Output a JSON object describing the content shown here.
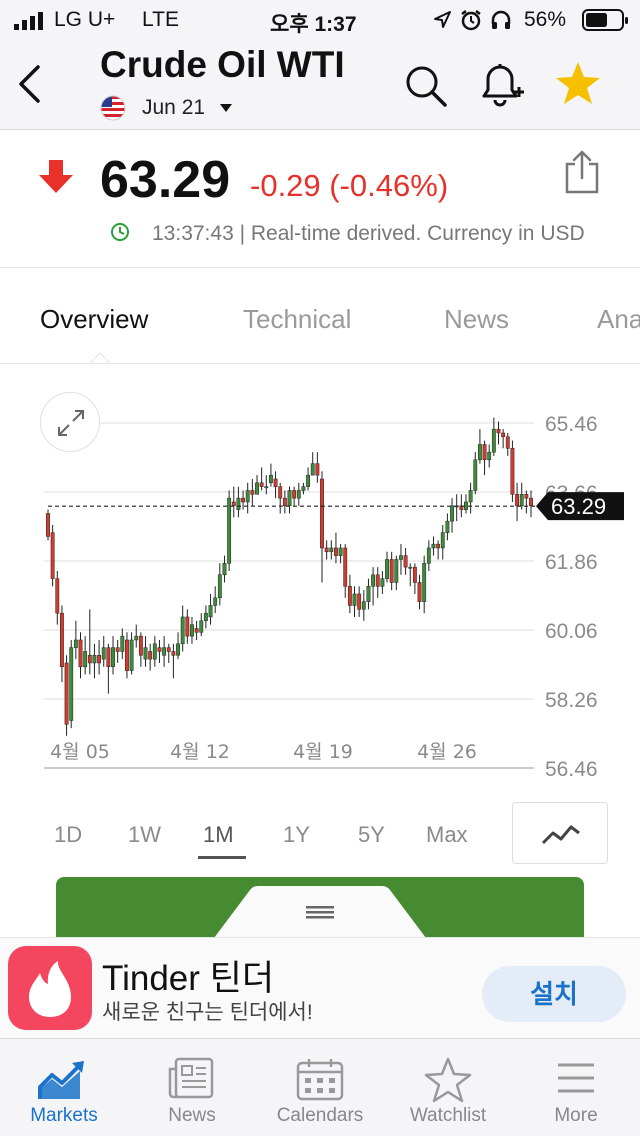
{
  "status_bar": {
    "carrier": "LG U+",
    "network": "LTE",
    "time": "오후 1:37",
    "battery": "56%"
  },
  "header": {
    "title": "Crude Oil WTI",
    "contract": "Jun 21",
    "flag_icon": "us-flag-icon",
    "icons": [
      "back-chevron-icon",
      "search-icon",
      "bell-plus-icon",
      "star-icon"
    ],
    "star_color": "#f5c000"
  },
  "quote": {
    "price": "63.29",
    "change": "-0.29 (-0.46%)",
    "time": "13:37:43",
    "note": "| Real-time derived. Currency in USD",
    "down_color": "#e8312b",
    "clock_color": "#2f9e3a"
  },
  "tabs": [
    {
      "label": "Overview",
      "active": true
    },
    {
      "label": "Technical",
      "active": false
    },
    {
      "label": "News",
      "active": false
    },
    {
      "label": "Ana",
      "active": false
    }
  ],
  "chart_data": {
    "type": "candlestick",
    "y_ticks": [
      "65.46",
      "63.66",
      "61.86",
      "60.06",
      "58.26",
      "56.46"
    ],
    "ylim": [
      56.46,
      65.46
    ],
    "x_ticks": [
      "4월 05",
      "4월 12",
      "4월 19",
      "4월 26"
    ],
    "last_price": "63.29",
    "last_value": 63.29,
    "up_color": "#3e8c3a",
    "down_color": "#d23b2e",
    "candles": [
      [
        63.1,
        62.5,
        63.2,
        62.4
      ],
      [
        62.6,
        61.4,
        62.8,
        61.2
      ],
      [
        61.4,
        60.5,
        61.6,
        60.2
      ],
      [
        60.5,
        59.1,
        60.7,
        58.7
      ],
      [
        59.2,
        57.6,
        59.4,
        57.3
      ],
      [
        57.7,
        59.6,
        59.8,
        57.5
      ],
      [
        59.6,
        59.8,
        60.3,
        59.3
      ],
      [
        59.8,
        59.1,
        60.0,
        58.8
      ],
      [
        59.1,
        59.5,
        59.9,
        58.9
      ],
      [
        59.4,
        59.2,
        60.6,
        58.9
      ],
      [
        59.2,
        59.4,
        59.7,
        58.8
      ],
      [
        59.4,
        59.2,
        59.8,
        58.9
      ],
      [
        59.3,
        59.6,
        59.9,
        59.1
      ],
      [
        59.6,
        59.1,
        59.7,
        58.4
      ],
      [
        59.1,
        59.6,
        59.9,
        58.9
      ],
      [
        59.6,
        59.5,
        59.8,
        59.2
      ],
      [
        59.5,
        59.9,
        60.1,
        59.3
      ],
      [
        59.8,
        59.0,
        60.0,
        58.8
      ],
      [
        59.0,
        59.8,
        60.0,
        58.9
      ],
      [
        59.8,
        59.9,
        60.2,
        59.6
      ],
      [
        59.9,
        59.4,
        60.0,
        59.1
      ],
      [
        59.3,
        59.6,
        59.9,
        59.1
      ],
      [
        59.5,
        59.3,
        59.7,
        59.0
      ],
      [
        59.3,
        59.7,
        59.9,
        59.1
      ],
      [
        59.6,
        59.5,
        59.8,
        59.2
      ],
      [
        59.4,
        59.6,
        59.9,
        59.1
      ],
      [
        59.6,
        59.5,
        59.7,
        59.2
      ],
      [
        59.5,
        59.4,
        59.7,
        58.8
      ],
      [
        59.4,
        59.7,
        60.0,
        59.3
      ],
      [
        59.7,
        60.4,
        60.7,
        59.5
      ],
      [
        60.4,
        59.9,
        60.6,
        59.7
      ],
      [
        59.9,
        60.2,
        60.4,
        59.7
      ],
      [
        60.1,
        60.0,
        60.3,
        59.8
      ],
      [
        60.0,
        60.3,
        60.5,
        59.9
      ],
      [
        60.3,
        60.5,
        60.7,
        60.1
      ],
      [
        60.4,
        60.7,
        61.0,
        60.2
      ],
      [
        60.7,
        60.9,
        61.2,
        60.5
      ],
      [
        60.9,
        61.5,
        61.8,
        60.7
      ],
      [
        61.5,
        61.8,
        62.0,
        61.3
      ],
      [
        61.8,
        63.5,
        63.7,
        61.6
      ],
      [
        63.4,
        63.3,
        63.8,
        63.0
      ],
      [
        63.2,
        63.5,
        63.8,
        63.0
      ],
      [
        63.5,
        63.4,
        63.7,
        63.2
      ],
      [
        63.4,
        63.7,
        63.9,
        63.1
      ],
      [
        63.7,
        63.6,
        64.0,
        63.3
      ],
      [
        63.6,
        63.9,
        64.1,
        63.6
      ],
      [
        63.9,
        63.8,
        64.3,
        63.7
      ],
      [
        63.8,
        63.8,
        64.1,
        63.6
      ],
      [
        63.9,
        64.1,
        64.4,
        63.8
      ],
      [
        64.0,
        63.8,
        64.2,
        63.5
      ],
      [
        63.8,
        63.5,
        63.9,
        63.1
      ],
      [
        63.5,
        63.3,
        63.7,
        63.1
      ],
      [
        63.3,
        63.7,
        63.8,
        63.1
      ],
      [
        63.7,
        63.5,
        63.8,
        63.3
      ],
      [
        63.5,
        63.7,
        63.9,
        63.3
      ],
      [
        63.7,
        63.8,
        63.9,
        63.6
      ],
      [
        63.8,
        64.1,
        64.3,
        63.7
      ],
      [
        64.1,
        64.4,
        64.7,
        64.1
      ],
      [
        64.4,
        64.1,
        64.7,
        63.9
      ],
      [
        64.0,
        62.2,
        64.2,
        61.3
      ],
      [
        62.2,
        62.1,
        62.4,
        61.9
      ],
      [
        62.1,
        62.2,
        62.4,
        61.9
      ],
      [
        62.2,
        62.0,
        62.6,
        61.8
      ],
      [
        62.0,
        62.2,
        62.3,
        61.8
      ],
      [
        62.2,
        61.2,
        62.3,
        60.9
      ],
      [
        61.2,
        60.7,
        61.5,
        60.5
      ],
      [
        60.7,
        61.0,
        61.2,
        60.4
      ],
      [
        61.0,
        60.6,
        61.2,
        60.4
      ],
      [
        60.6,
        60.8,
        61.1,
        60.3
      ],
      [
        60.8,
        61.2,
        61.4,
        60.6
      ],
      [
        61.2,
        61.5,
        61.7,
        60.7
      ],
      [
        61.5,
        61.2,
        61.7,
        60.9
      ],
      [
        61.2,
        61.4,
        61.6,
        61.0
      ],
      [
        61.4,
        61.9,
        62.1,
        61.3
      ],
      [
        61.9,
        61.3,
        62.1,
        61.1
      ],
      [
        61.3,
        61.9,
        62.0,
        61.1
      ],
      [
        61.9,
        62.0,
        62.3,
        61.5
      ],
      [
        62.0,
        61.7,
        62.2,
        61.5
      ],
      [
        61.7,
        61.7,
        61.8,
        61.2
      ],
      [
        61.7,
        61.3,
        61.8,
        61.0
      ],
      [
        61.3,
        60.8,
        61.5,
        60.6
      ],
      [
        60.8,
        61.8,
        62.0,
        60.5
      ],
      [
        61.8,
        62.2,
        62.4,
        61.6
      ],
      [
        62.2,
        62.3,
        62.5,
        62.0
      ],
      [
        62.3,
        62.2,
        62.4,
        61.9
      ],
      [
        62.2,
        62.6,
        62.8,
        61.9
      ],
      [
        62.6,
        62.9,
        63.1,
        62.4
      ],
      [
        62.9,
        63.3,
        63.5,
        62.6
      ],
      [
        63.3,
        63.3,
        63.6,
        62.9
      ],
      [
        63.3,
        63.2,
        63.6,
        63.0
      ],
      [
        63.2,
        63.4,
        63.6,
        63.1
      ],
      [
        63.4,
        63.7,
        63.9,
        63.1
      ],
      [
        63.7,
        64.5,
        64.7,
        63.6
      ],
      [
        64.5,
        64.9,
        65.3,
        64.4
      ],
      [
        64.9,
        64.5,
        65.0,
        64.1
      ],
      [
        64.5,
        64.7,
        64.9,
        64.3
      ],
      [
        64.7,
        65.3,
        65.6,
        64.6
      ],
      [
        65.3,
        65.2,
        65.5,
        64.9
      ],
      [
        65.2,
        65.1,
        65.3,
        64.8
      ],
      [
        65.1,
        64.8,
        65.2,
        64.6
      ],
      [
        64.8,
        63.6,
        65.0,
        63.4
      ],
      [
        63.6,
        63.3,
        63.9,
        62.9
      ],
      [
        63.3,
        63.6,
        63.9,
        63.2
      ],
      [
        63.6,
        63.5,
        63.7,
        63.1
      ],
      [
        63.5,
        63.3,
        63.7,
        63.0
      ]
    ]
  },
  "ranges": [
    {
      "label": "1D",
      "active": false
    },
    {
      "label": "1W",
      "active": false
    },
    {
      "label": "1M",
      "active": true
    },
    {
      "label": "1Y",
      "active": false
    },
    {
      "label": "5Y",
      "active": false
    },
    {
      "label": "Max",
      "active": false
    }
  ],
  "chart_icons": [
    "expand-icon",
    "line-chart-toggle-icon",
    "drag-handle-icon"
  ],
  "green_panel_color": "#468a31",
  "ad": {
    "app_name": "Tinder 틴더",
    "tagline": "새로운 친구는 틴더에서!",
    "install_label": "설치",
    "icon": "tinder-flame-icon",
    "icon_color": "#f4465e"
  },
  "bottom_nav": [
    {
      "label": "Markets",
      "icon": "markets-chart-icon",
      "active": true
    },
    {
      "label": "News",
      "icon": "news-icon",
      "active": false
    },
    {
      "label": "Calendars",
      "icon": "calendar-icon",
      "active": false
    },
    {
      "label": "Watchlist",
      "icon": "star-outline-icon",
      "active": false
    },
    {
      "label": "More",
      "icon": "menu-icon",
      "active": false
    }
  ],
  "accent_color": "#1a73c9"
}
